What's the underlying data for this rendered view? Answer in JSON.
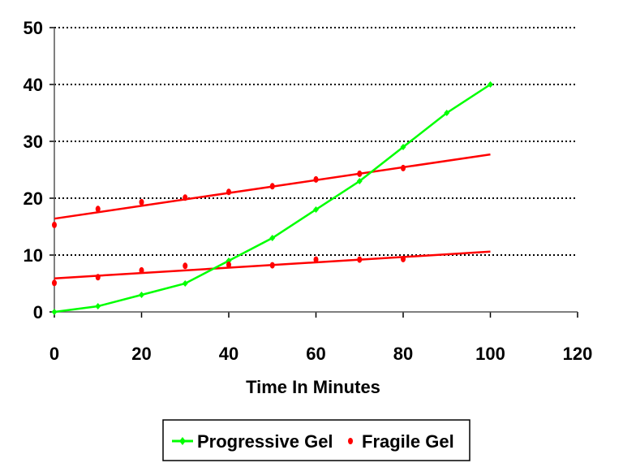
{
  "chart_data": {
    "type": "line",
    "title": "",
    "xlabel": "Time In Minutes",
    "ylabel": "",
    "xlim": [
      0,
      120
    ],
    "ylim": [
      0,
      50
    ],
    "xticks": [
      0,
      20,
      40,
      60,
      80,
      100,
      120
    ],
    "yticks": [
      0,
      10,
      20,
      30,
      40,
      50
    ],
    "grid": "horizontal dotted",
    "legend_position": "bottom",
    "series": [
      {
        "name": "Progressive Gel",
        "color": "#00ff00",
        "style": "line-markers",
        "x": [
          0,
          10,
          20,
          30,
          40,
          50,
          60,
          70,
          80,
          90,
          100
        ],
        "y": [
          0,
          1,
          3,
          5,
          9,
          13,
          18,
          23,
          29,
          35,
          40
        ]
      },
      {
        "name": "Fragile Gel",
        "color": "#ff0000",
        "style": "markers",
        "x": [
          0,
          10,
          20,
          30,
          40,
          50,
          60,
          70,
          80
        ],
        "y": [
          15.3,
          18.1,
          19.3,
          20.1,
          21.1,
          22.1,
          23.3,
          24.3,
          25.3
        ]
      },
      {
        "color": "#ff0000",
        "style": "markers",
        "x": [
          0,
          10,
          20,
          30,
          40,
          50,
          60,
          70,
          80
        ],
        "y": [
          5.1,
          6.1,
          7.3,
          8.1,
          8.3,
          8.2,
          9.2,
          9.2,
          9.3
        ]
      }
    ],
    "trendlines": [
      {
        "color": "#ff0000",
        "x": [
          0,
          100
        ],
        "y": [
          16.4,
          27.7
        ]
      },
      {
        "color": "#ff0000",
        "x": [
          0,
          100
        ],
        "y": [
          5.9,
          10.6
        ]
      }
    ]
  }
}
